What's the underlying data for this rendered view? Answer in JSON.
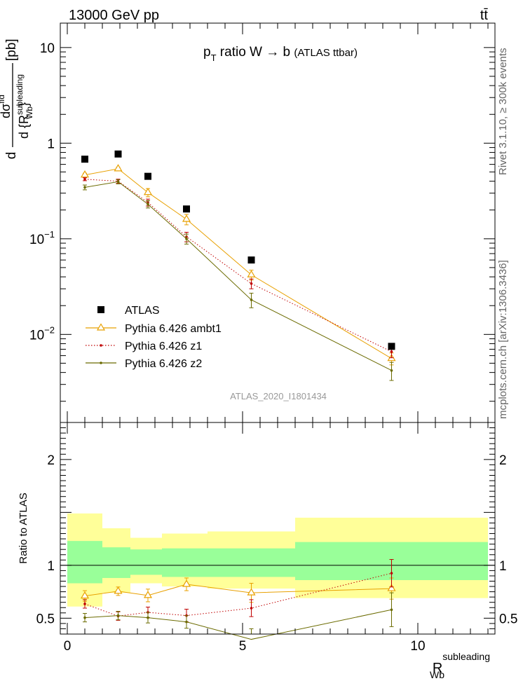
{
  "header": {
    "left_label": "13000 GeV pp",
    "right_label": "tt̄"
  },
  "side": {
    "version_label": "Rivet 3.1.10, ≥ 300k events",
    "source_label": "mcplots.cern.ch [arXiv:1306.3436]"
  },
  "chart_data": {
    "type": "scatter",
    "title": {
      "prefix": "p",
      "sub": "T",
      "main": " ratio W → b ",
      "small": "(ATLAS ttbar)"
    },
    "analysis_label": "ATLAS_2020_I1801434",
    "xlabel": {
      "main": "R",
      "sub": "Wb",
      "sup": "subleading"
    },
    "ylabel_main": {
      "d": "d",
      "num_main": "dσ",
      "num_sup": "fid",
      "den_main": "d {R",
      "den_sup": "subleading",
      "den_sub": "Wb",
      "den_close": "}",
      "units": " [pb]"
    },
    "ylabel_ratio": "Ratio to ATLAS",
    "xlim": [
      -0.2,
      12.2
    ],
    "ylim_main": [
      0.0012,
      18
    ],
    "ylim_ratio": [
      0.35,
      2.35
    ],
    "x_ticks": [
      "0",
      "5",
      "10"
    ],
    "y_ticks_main": [
      {
        "value": 10,
        "base": "10",
        "exp": ""
      },
      {
        "value": 1,
        "base": "1",
        "exp": ""
      },
      {
        "value": 0.1,
        "base": "10",
        "exp": "−1"
      },
      {
        "value": 0.01,
        "base": "10",
        "exp": "−2"
      }
    ],
    "y_ticks_ratio": [
      "0.5",
      "1",
      "2"
    ],
    "bins": [
      [
        0,
        1
      ],
      [
        1,
        1.8
      ],
      [
        1.8,
        2.7
      ],
      [
        2.7,
        4
      ],
      [
        4,
        6.5
      ],
      [
        6.5,
        12
      ]
    ],
    "x": [
      0.5,
      1.45,
      2.3,
      3.4,
      5.25,
      9.25
    ],
    "band_inner": [
      [
        0.83,
        1.23
      ],
      [
        0.88,
        1.17
      ],
      [
        0.91,
        1.15
      ],
      [
        0.89,
        1.16
      ],
      [
        0.89,
        1.16
      ],
      [
        0.86,
        1.22
      ]
    ],
    "band_outer": [
      [
        0.61,
        1.49
      ],
      [
        0.74,
        1.35
      ],
      [
        0.83,
        1.26
      ],
      [
        0.8,
        1.3
      ],
      [
        0.78,
        1.32
      ],
      [
        0.69,
        1.45
      ]
    ],
    "legend": [
      "ATLAS",
      "Pythia 6.426 ambt1",
      "Pythia 6.426 z1",
      "Pythia 6.426 z2"
    ],
    "colors": {
      "data": "#000000",
      "ambt1": "#e8a000",
      "z1": "#c00000",
      "z2": "#6b6b00",
      "band_inner": "#99ff99",
      "band_outer": "#ffff99",
      "analysis": "#999999",
      "side": "#666666"
    },
    "series": [
      {
        "name": "ATLAS",
        "key": "data",
        "values": [
          0.68,
          0.77,
          0.45,
          0.205,
          0.06,
          0.0075
        ],
        "errors": [
          0,
          0,
          0,
          0,
          0,
          0
        ],
        "ratio": [
          1,
          1,
          1,
          1,
          1,
          1
        ],
        "ratio_errors": [
          0,
          0,
          0,
          0,
          0,
          0
        ]
      },
      {
        "name": "Pythia 6.426 ambt1",
        "key": "ambt1",
        "values": [
          0.465,
          0.54,
          0.305,
          0.16,
          0.042,
          0.0056
        ],
        "errors": [
          0.02,
          0.02,
          0.03,
          0.02,
          0.005,
          0.0008
        ],
        "ratio": [
          0.71,
          0.755,
          0.715,
          0.82,
          0.74,
          0.78
        ],
        "ratio_errors": [
          0.05,
          0.04,
          0.06,
          0.06,
          0.09,
          0.1
        ]
      },
      {
        "name": "Pythia 6.426 z1",
        "key": "z1",
        "values": [
          0.42,
          0.4,
          0.24,
          0.105,
          0.034,
          0.0066
        ],
        "errors": [
          0.015,
          0.02,
          0.02,
          0.012,
          0.004,
          0.0009
        ],
        "ratio": [
          0.635,
          0.52,
          0.555,
          0.525,
          0.595,
          0.925
        ],
        "ratio_errors": [
          0.04,
          0.04,
          0.05,
          0.06,
          0.08,
          0.13
        ]
      },
      {
        "name": "Pythia 6.426 z2",
        "key": "z2",
        "values": [
          0.345,
          0.395,
          0.23,
          0.1,
          0.023,
          0.0042
        ],
        "errors": [
          0.02,
          0.02,
          0.02,
          0.012,
          0.004,
          0.0009
        ],
        "ratio": [
          0.505,
          0.525,
          0.505,
          0.465,
          0.3,
          0.58
        ],
        "ratio_errors": [
          0.04,
          0.04,
          0.05,
          0.06,
          0.1,
          0.16
        ]
      }
    ]
  }
}
